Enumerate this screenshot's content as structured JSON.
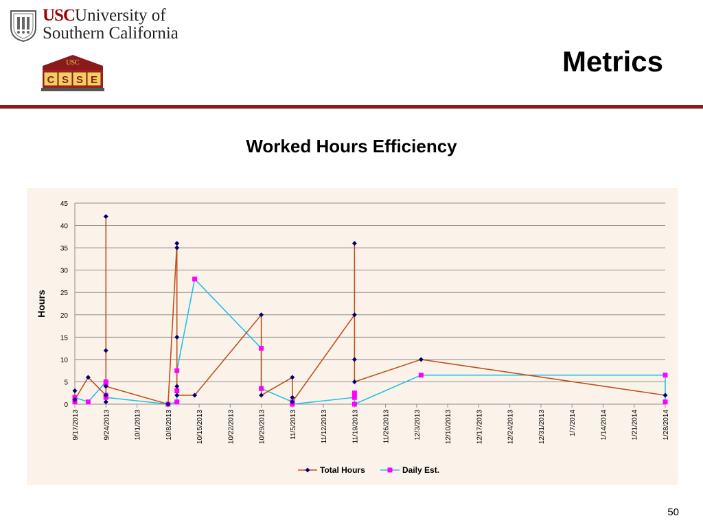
{
  "header": {
    "university_line1_prefix": "USC",
    "university_line1_rest": "University of",
    "university_line2": "Southern California",
    "csse_top": "USC",
    "csse_letters": [
      "C",
      "S",
      "S",
      "E"
    ],
    "title": "Metrics"
  },
  "colors": {
    "rule": "#8b1a1a",
    "panel_bg": "#fbf3ea",
    "total_hours": "#c0501a",
    "total_hours_marker": "#00006e",
    "daily_est": "#20c0e8",
    "daily_est_marker": "#ff00ff"
  },
  "chart_data": {
    "type": "line",
    "title": "Worked Hours Efficiency",
    "xlabel": "",
    "ylabel": "Hours",
    "ylim": [
      0,
      45
    ],
    "yticks": [
      0,
      5,
      10,
      15,
      20,
      25,
      30,
      35,
      40,
      45
    ],
    "xlim": [
      "2013-09-17",
      "2014-01-28"
    ],
    "xtick_labels": [
      "9/17/2013",
      "9/24/2013",
      "10/1/2013",
      "10/8/2013",
      "10/15/2013",
      "10/22/2013",
      "10/29/2013",
      "11/5/2013",
      "11/12/2013",
      "11/19/2013",
      "11/26/2013",
      "12/3/2013",
      "12/10/2013",
      "12/17/2013",
      "12/24/2013",
      "12/31/2013",
      "1/7/2014",
      "1/14/2014",
      "1/21/2014",
      "1/28/2014"
    ],
    "grid": true,
    "legend_position": "bottom",
    "series": [
      {
        "name": "Total Hours",
        "points": [
          [
            "2013-09-17",
            3
          ],
          [
            "2013-09-17",
            1
          ],
          [
            "2013-09-20",
            6
          ],
          [
            "2013-09-24",
            2
          ],
          [
            "2013-09-24",
            0.5
          ],
          [
            "2013-09-24",
            42
          ],
          [
            "2013-09-24",
            12
          ],
          [
            "2013-09-24",
            4
          ],
          [
            "2013-10-08",
            0
          ],
          [
            "2013-10-10",
            36
          ],
          [
            "2013-10-10",
            35
          ],
          [
            "2013-10-10",
            15
          ],
          [
            "2013-10-10",
            4
          ],
          [
            "2013-10-10",
            2
          ],
          [
            "2013-10-14",
            2
          ],
          [
            "2013-10-29",
            20
          ],
          [
            "2013-10-29",
            2
          ],
          [
            "2013-11-05",
            6
          ],
          [
            "2013-11-05",
            1.5
          ],
          [
            "2013-11-05",
            0.5
          ],
          [
            "2013-11-19",
            20
          ],
          [
            "2013-11-19",
            36
          ],
          [
            "2013-11-19",
            10
          ],
          [
            "2013-11-19",
            5
          ],
          [
            "2013-12-04",
            10
          ],
          [
            "2014-01-28",
            2
          ]
        ]
      },
      {
        "name": "Daily Est.",
        "points": [
          [
            "2013-09-17",
            0.5
          ],
          [
            "2013-09-17",
            1.5
          ],
          [
            "2013-09-20",
            0.5
          ],
          [
            "2013-09-24",
            5
          ],
          [
            "2013-09-24",
            4.5
          ],
          [
            "2013-09-24",
            2
          ],
          [
            "2013-09-24",
            1.5
          ],
          [
            "2013-10-08",
            0
          ],
          [
            "2013-10-10",
            0.5
          ],
          [
            "2013-10-10",
            3
          ],
          [
            "2013-10-10",
            7.5
          ],
          [
            "2013-10-14",
            28
          ],
          [
            "2013-10-29",
            12.5
          ],
          [
            "2013-10-29",
            3.5
          ],
          [
            "2013-11-05",
            0.5
          ],
          [
            "2013-11-05",
            0
          ],
          [
            "2013-11-19",
            1.5
          ],
          [
            "2013-11-19",
            2.5
          ],
          [
            "2013-11-19",
            0
          ],
          [
            "2013-12-04",
            6.5
          ],
          [
            "2014-01-28",
            6.5
          ],
          [
            "2014-01-28",
            0.5
          ]
        ]
      }
    ]
  },
  "footer": {
    "page_number": "50"
  }
}
